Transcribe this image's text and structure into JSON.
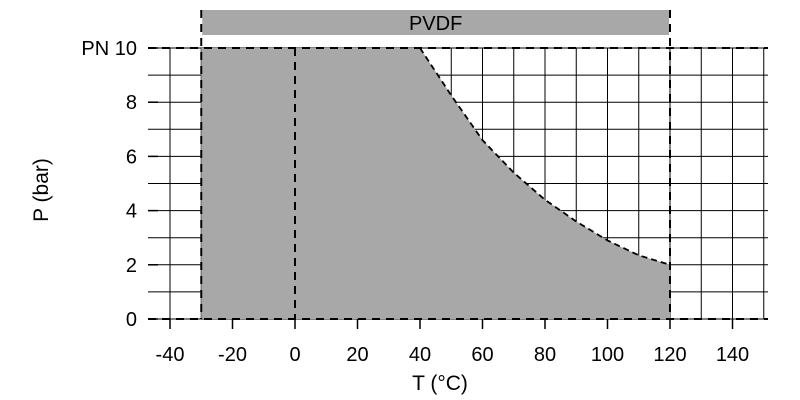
{
  "chart_data": {
    "type": "area",
    "band_label": "PVDF",
    "band_range": [
      -30,
      120
    ],
    "xlabel": "T (°C)",
    "ylabel": "P (bar)",
    "xlim": [
      -45,
      150
    ],
    "ylim": [
      0,
      10
    ],
    "grid": true,
    "x_ticks": [
      -40,
      -20,
      0,
      20,
      40,
      60,
      80,
      100,
      120,
      140
    ],
    "x_tick_labels": [
      "-40",
      "-20",
      "0",
      "20",
      "40",
      "60",
      "80",
      "100",
      "120",
      "140"
    ],
    "y_ticks": [
      0,
      2,
      4,
      6,
      8,
      10
    ],
    "y_tick_labels": [
      "0",
      "2",
      "4",
      "6",
      "8",
      "PN 10"
    ],
    "series": [
      {
        "x": [
          -30,
          40,
          50,
          60,
          70,
          80,
          90,
          100,
          110,
          120
        ],
        "y": [
          10,
          10,
          8.25,
          6.6,
          5.4,
          4.4,
          3.6,
          2.9,
          2.35,
          2.0
        ]
      }
    ],
    "colors": {
      "fill": "#a8a8a8",
      "band": "#a8a8a8",
      "grid": "#000000"
    }
  }
}
